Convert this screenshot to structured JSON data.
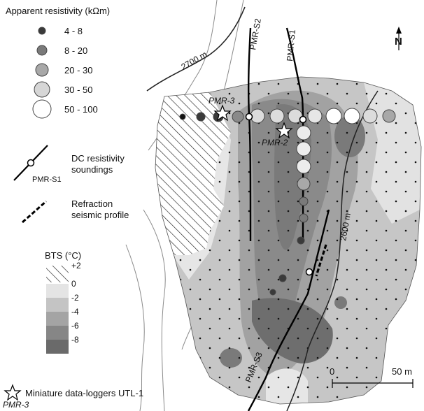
{
  "legend": {
    "resistivity_title": "Apparent resistivity (kΩm)",
    "resistivity_classes": [
      {
        "label": "4 - 8",
        "color": "#3a3a3a"
      },
      {
        "label": "8 - 20",
        "color": "#7a7a7a"
      },
      {
        "label": "20 - 30",
        "color": "#a8a8a8"
      },
      {
        "label": "30 - 50",
        "color": "#d6d6d6"
      },
      {
        "label": "50 - 100",
        "color": "#ffffff"
      }
    ],
    "dc_line1": "DC resistivity",
    "dc_line2": "soundings",
    "dc_example": "PMR-S1",
    "refr_line1": "Refraction",
    "refr_line2": "seismic profile",
    "bts_title": "BTS (°C)",
    "bts_classes": [
      {
        "label": "+2",
        "pattern": "hatch"
      },
      {
        "label": "0",
        "color": "#e4e4e4"
      },
      {
        "label": "-2",
        "color": "#c4c4c4"
      },
      {
        "label": "-4",
        "color": "#a4a4a4"
      },
      {
        "label": "-6",
        "color": "#868686"
      },
      {
        "label": "-8",
        "color": "#6a6a6a"
      }
    ],
    "logger_text": "Miniature data-loggers UTL-1",
    "logger_example": "PMR-3"
  },
  "map": {
    "north": "N",
    "contours": [
      "2700 m",
      "2600 m"
    ],
    "profiles": [
      "PMR-S1",
      "PMR-S2",
      "PMR-S3"
    ],
    "loggers": [
      "PMR-3",
      "PMR-2"
    ],
    "scale": {
      "start": "0",
      "end": "50 m"
    }
  }
}
